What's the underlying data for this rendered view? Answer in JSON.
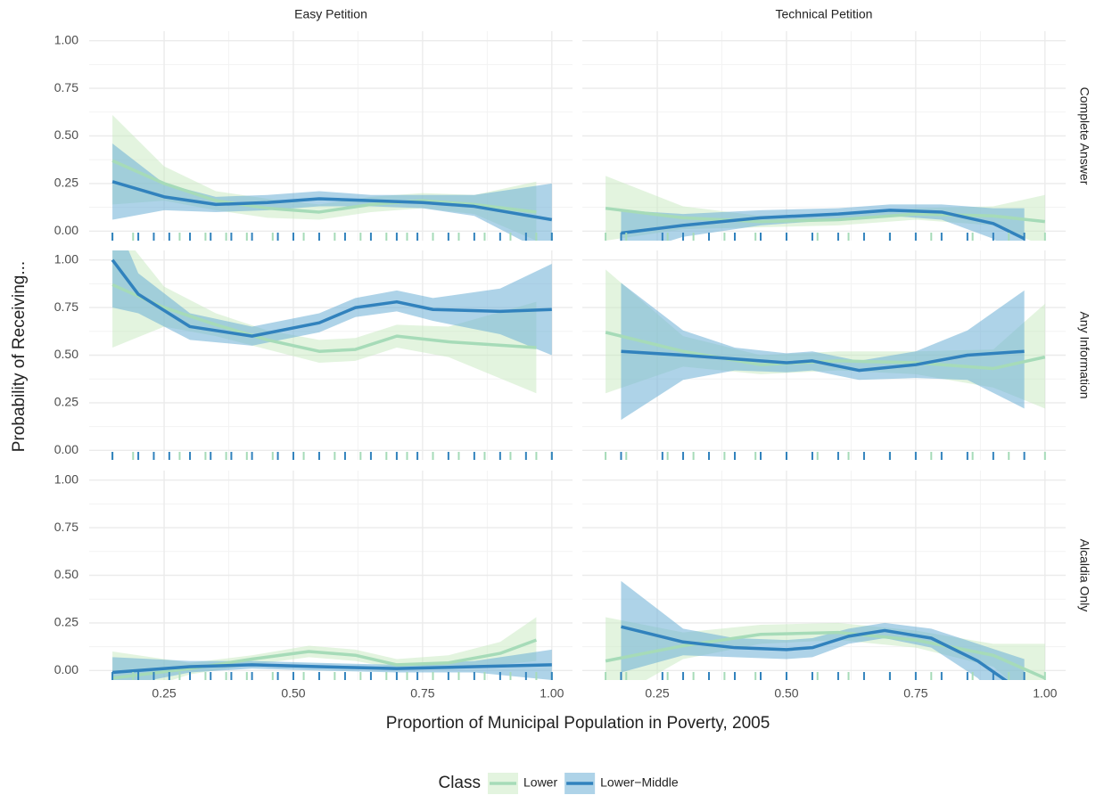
{
  "chart_data": {
    "type": "line",
    "x_label": "Proportion of Municipal Population in Poverty, 2005",
    "y_label": "Probability of Receiving...",
    "columns": [
      "Easy Petition",
      "Technical Petition"
    ],
    "rows": [
      "Complete Answer",
      "Any Information",
      "Alcaldia Only"
    ],
    "legend_title": "Class",
    "series": [
      {
        "name": "Lower",
        "color": "#a6dbb8",
        "band_color": "#c7e9c0"
      },
      {
        "name": "Lower−Middle",
        "color": "#3182bd",
        "band_color": "#6baed6"
      }
    ],
    "xlim": [
      0.105,
      1.04
    ],
    "ylim": [
      -0.05,
      1.05
    ],
    "xticks": [
      {
        "value": 0.25,
        "label": "0.25"
      },
      {
        "value": 0.5,
        "label": "0.50"
      },
      {
        "value": 0.75,
        "label": "0.75"
      },
      {
        "value": 1,
        "label": "1.00"
      }
    ],
    "yticks": [
      {
        "value": 0,
        "label": "0.00"
      },
      {
        "value": 0.25,
        "label": "0.25"
      },
      {
        "value": 0.5,
        "label": "0.50"
      },
      {
        "value": 0.75,
        "label": "0.75"
      },
      {
        "value": 1,
        "label": "1.00"
      }
    ],
    "grid": true,
    "panels": [
      {
        "series": [
          {
            "x": [
              0.15,
              0.25,
              0.35,
              0.45,
              0.55,
              0.65,
              0.75,
              0.85,
              0.97
            ],
            "values": [
              0.37,
              0.25,
              0.16,
              0.12,
              0.1,
              0.14,
              0.16,
              0.14,
              0.1
            ],
            "lower": [
              0.14,
              0.16,
              0.11,
              0.07,
              0.06,
              0.1,
              0.12,
              0.09,
              -0.05
            ],
            "upper": [
              0.61,
              0.34,
              0.21,
              0.17,
              0.14,
              0.18,
              0.2,
              0.19,
              0.26
            ],
            "rug": [
              0.15,
              0.19,
              0.28,
              0.33,
              0.37,
              0.41,
              0.46,
              0.52,
              0.58,
              0.63,
              0.68,
              0.72,
              0.77,
              0.82,
              0.87,
              0.92,
              0.97,
              1.0
            ]
          },
          {
            "x": [
              0.15,
              0.25,
              0.35,
              0.45,
              0.55,
              0.65,
              0.75,
              0.85,
              1.0
            ],
            "values": [
              0.26,
              0.18,
              0.14,
              0.15,
              0.17,
              0.16,
              0.15,
              0.13,
              0.06
            ],
            "lower": [
              0.06,
              0.11,
              0.1,
              0.11,
              0.13,
              0.13,
              0.12,
              0.08,
              -0.13
            ],
            "upper": [
              0.46,
              0.25,
              0.18,
              0.19,
              0.21,
              0.19,
              0.19,
              0.19,
              0.25
            ],
            "rug": [
              0.15,
              0.2,
              0.23,
              0.26,
              0.3,
              0.34,
              0.38,
              0.42,
              0.47,
              0.5,
              0.55,
              0.6,
              0.65,
              0.7,
              0.74,
              0.8,
              0.85,
              0.9,
              0.95,
              1.0
            ]
          }
        ]
      },
      {
        "series": [
          {
            "x": [
              0.15,
              0.3,
              0.45,
              0.6,
              0.75,
              0.9,
              1.0
            ],
            "values": [
              0.12,
              0.07,
              0.05,
              0.06,
              0.09,
              0.08,
              0.05
            ],
            "lower": [
              -0.05,
              0.01,
              0.02,
              0.03,
              0.06,
              0.03,
              -0.08
            ],
            "upper": [
              0.29,
              0.13,
              0.08,
              0.09,
              0.12,
              0.13,
              0.19
            ],
            "rug": [
              0.15,
              0.19,
              0.27,
              0.32,
              0.38,
              0.44,
              0.5,
              0.56,
              0.62,
              0.7,
              0.78,
              0.86,
              0.93,
              1.0
            ]
          },
          {
            "x": [
              0.18,
              0.3,
              0.45,
              0.6,
              0.7,
              0.8,
              0.9,
              0.96
            ],
            "values": [
              -0.01,
              0.03,
              0.07,
              0.09,
              0.11,
              0.1,
              0.04,
              -0.04
            ],
            "lower": [
              -0.13,
              -0.03,
              0.03,
              0.06,
              0.08,
              0.06,
              -0.04,
              -0.16
            ],
            "upper": [
              0.11,
              0.09,
              0.11,
              0.12,
              0.14,
              0.14,
              0.12,
              0.12
            ],
            "rug": [
              0.18,
              0.26,
              0.3,
              0.35,
              0.4,
              0.45,
              0.5,
              0.55,
              0.6,
              0.65,
              0.7,
              0.75,
              0.8,
              0.85,
              0.9,
              0.96
            ]
          }
        ]
      },
      {
        "series": [
          {
            "x": [
              0.15,
              0.25,
              0.35,
              0.45,
              0.55,
              0.62,
              0.7,
              0.8,
              0.97
            ],
            "values": [
              0.87,
              0.75,
              0.66,
              0.58,
              0.52,
              0.53,
              0.6,
              0.57,
              0.54
            ],
            "lower": [
              0.54,
              0.65,
              0.6,
              0.53,
              0.46,
              0.47,
              0.54,
              0.49,
              0.3
            ],
            "upper": [
              1.2,
              0.86,
              0.72,
              0.63,
              0.58,
              0.59,
              0.66,
              0.65,
              0.78
            ],
            "rug": [
              0.15,
              0.19,
              0.28,
              0.33,
              0.37,
              0.41,
              0.46,
              0.52,
              0.58,
              0.63,
              0.68,
              0.72,
              0.77,
              0.82,
              0.87,
              0.92,
              0.97,
              1.0
            ]
          },
          {
            "x": [
              0.15,
              0.2,
              0.3,
              0.42,
              0.55,
              0.62,
              0.7,
              0.77,
              0.9,
              1.0
            ],
            "values": [
              1.0,
              0.82,
              0.65,
              0.6,
              0.67,
              0.75,
              0.78,
              0.74,
              0.73,
              0.74
            ],
            "lower": [
              0.75,
              0.72,
              0.58,
              0.55,
              0.62,
              0.7,
              0.73,
              0.68,
              0.61,
              0.5
            ],
            "upper": [
              1.25,
              0.93,
              0.72,
              0.65,
              0.72,
              0.8,
              0.84,
              0.8,
              0.85,
              0.98
            ],
            "rug": [
              0.15,
              0.2,
              0.23,
              0.26,
              0.3,
              0.34,
              0.38,
              0.42,
              0.47,
              0.5,
              0.55,
              0.6,
              0.65,
              0.7,
              0.74,
              0.8,
              0.85,
              0.9,
              0.95,
              1.0
            ]
          }
        ]
      },
      {
        "series": [
          {
            "x": [
              0.15,
              0.3,
              0.45,
              0.6,
              0.75,
              0.9,
              1.0
            ],
            "values": [
              0.62,
              0.52,
              0.45,
              0.47,
              0.46,
              0.43,
              0.49
            ],
            "lower": [
              0.3,
              0.44,
              0.4,
              0.42,
              0.4,
              0.33,
              0.22
            ],
            "upper": [
              0.95,
              0.6,
              0.5,
              0.52,
              0.52,
              0.53,
              0.77
            ],
            "rug": [
              0.15,
              0.19,
              0.27,
              0.32,
              0.38,
              0.44,
              0.5,
              0.56,
              0.62,
              0.7,
              0.78,
              0.86,
              0.93,
              1.0
            ]
          },
          {
            "x": [
              0.18,
              0.3,
              0.4,
              0.5,
              0.55,
              0.64,
              0.75,
              0.85,
              0.96
            ],
            "values": [
              0.52,
              0.5,
              0.48,
              0.46,
              0.47,
              0.42,
              0.45,
              0.5,
              0.52
            ],
            "lower": [
              0.16,
              0.37,
              0.42,
              0.41,
              0.42,
              0.37,
              0.38,
              0.37,
              0.22
            ],
            "upper": [
              0.88,
              0.63,
              0.54,
              0.51,
              0.52,
              0.47,
              0.52,
              0.63,
              0.84
            ],
            "rug": [
              0.18,
              0.26,
              0.3,
              0.35,
              0.4,
              0.45,
              0.5,
              0.55,
              0.6,
              0.65,
              0.7,
              0.75,
              0.8,
              0.85,
              0.9,
              0.96
            ]
          }
        ]
      },
      {
        "series": [
          {
            "x": [
              0.15,
              0.3,
              0.42,
              0.53,
              0.62,
              0.7,
              0.8,
              0.9,
              0.97
            ],
            "values": [
              -0.04,
              0.01,
              0.06,
              0.1,
              0.08,
              0.03,
              0.04,
              0.09,
              0.16
            ],
            "lower": [
              -0.15,
              -0.02,
              0.03,
              0.07,
              0.05,
              0.01,
              0.01,
              0.03,
              0.05
            ],
            "upper": [
              0.1,
              0.04,
              0.08,
              0.13,
              0.11,
              0.06,
              0.08,
              0.15,
              0.28
            ],
            "rug": [
              0.15,
              0.19,
              0.28,
              0.33,
              0.37,
              0.41,
              0.46,
              0.52,
              0.58,
              0.63,
              0.68,
              0.72,
              0.77,
              0.82,
              0.87,
              0.92,
              0.97,
              1.0
            ]
          },
          {
            "x": [
              0.15,
              0.3,
              0.42,
              0.55,
              0.7,
              0.85,
              1.0
            ],
            "values": [
              -0.01,
              0.02,
              0.03,
              0.02,
              0.01,
              0.02,
              0.03
            ],
            "lower": [
              -0.09,
              -0.01,
              0.01,
              0.0,
              -0.01,
              -0.01,
              -0.05
            ],
            "upper": [
              0.07,
              0.05,
              0.05,
              0.04,
              0.03,
              0.05,
              0.11
            ],
            "rug": [
              0.15,
              0.2,
              0.23,
              0.26,
              0.3,
              0.34,
              0.38,
              0.42,
              0.47,
              0.5,
              0.55,
              0.6,
              0.65,
              0.7,
              0.74,
              0.8,
              0.85,
              0.9,
              0.95,
              1.0
            ]
          }
        ]
      },
      {
        "series": [
          {
            "x": [
              0.15,
              0.3,
              0.45,
              0.6,
              0.75,
              0.9,
              1.0
            ],
            "values": [
              0.05,
              0.13,
              0.19,
              0.2,
              0.16,
              0.08,
              -0.04
            ],
            "lower": [
              -0.17,
              0.06,
              0.14,
              0.16,
              0.12,
              0.02,
              -0.22
            ],
            "upper": [
              0.28,
              0.2,
              0.24,
              0.25,
              0.21,
              0.14,
              0.14
            ],
            "rug": [
              0.15,
              0.19,
              0.27,
              0.32,
              0.38,
              0.44,
              0.5,
              0.56,
              0.62,
              0.7,
              0.78,
              0.86,
              0.93,
              1.0
            ]
          },
          {
            "x": [
              0.18,
              0.3,
              0.4,
              0.5,
              0.55,
              0.62,
              0.69,
              0.78,
              0.87,
              0.96
            ],
            "values": [
              0.23,
              0.15,
              0.12,
              0.11,
              0.12,
              0.18,
              0.21,
              0.17,
              0.05,
              -0.12
            ],
            "lower": [
              -0.01,
              0.08,
              0.07,
              0.06,
              0.07,
              0.14,
              0.17,
              0.12,
              -0.04,
              -0.3
            ],
            "upper": [
              0.47,
              0.22,
              0.17,
              0.16,
              0.17,
              0.22,
              0.25,
              0.22,
              0.14,
              0.06
            ],
            "rug": [
              0.18,
              0.26,
              0.3,
              0.35,
              0.4,
              0.45,
              0.5,
              0.55,
              0.6,
              0.65,
              0.7,
              0.75,
              0.8,
              0.85,
              0.9,
              0.96
            ]
          }
        ]
      }
    ]
  }
}
